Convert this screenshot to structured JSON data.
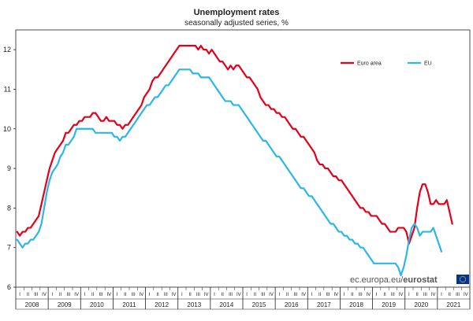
{
  "chart_data": {
    "type": "line",
    "title": "Unemployment rates",
    "subtitle": "seasonally adjusted series, %",
    "xlabel": "",
    "ylabel": "",
    "ylim": [
      6,
      12.5
    ],
    "yticks": [
      6,
      7,
      8,
      9,
      10,
      11,
      12
    ],
    "grid": false,
    "legend_placement": "top-right",
    "quarter_labels": [
      "I",
      "II",
      "III",
      "IV"
    ],
    "years": [
      "2008",
      "2009",
      "2010",
      "2011",
      "2012",
      "2013",
      "2014",
      "2015",
      "2016",
      "2017",
      "2018",
      "2019",
      "2020",
      "2021"
    ],
    "x_start": "2008-01",
    "series": [
      {
        "name": "Euro area",
        "color": "#e3001b",
        "values": [
          7.4,
          7.3,
          7.4,
          7.4,
          7.5,
          7.5,
          7.6,
          7.7,
          7.8,
          8.1,
          8.4,
          8.7,
          9.0,
          9.2,
          9.4,
          9.5,
          9.6,
          9.7,
          9.9,
          9.9,
          10.0,
          10.1,
          10.1,
          10.2,
          10.2,
          10.3,
          10.3,
          10.3,
          10.4,
          10.4,
          10.3,
          10.2,
          10.2,
          10.3,
          10.2,
          10.2,
          10.2,
          10.1,
          10.1,
          10.0,
          10.1,
          10.1,
          10.2,
          10.3,
          10.4,
          10.5,
          10.6,
          10.8,
          10.9,
          11.0,
          11.2,
          11.3,
          11.3,
          11.4,
          11.5,
          11.6,
          11.7,
          11.8,
          11.9,
          12.0,
          12.1,
          12.1,
          12.1,
          12.1,
          12.1,
          12.1,
          12.1,
          12.0,
          12.1,
          12.0,
          12.0,
          11.9,
          12.0,
          11.9,
          11.8,
          11.7,
          11.7,
          11.6,
          11.5,
          11.6,
          11.5,
          11.6,
          11.6,
          11.5,
          11.4,
          11.3,
          11.3,
          11.2,
          11.1,
          11.0,
          10.8,
          10.7,
          10.6,
          10.6,
          10.5,
          10.5,
          10.4,
          10.4,
          10.3,
          10.3,
          10.2,
          10.1,
          10.0,
          10.0,
          9.9,
          9.8,
          9.8,
          9.7,
          9.6,
          9.5,
          9.4,
          9.2,
          9.1,
          9.1,
          9.0,
          9.0,
          8.9,
          8.8,
          8.8,
          8.7,
          8.7,
          8.6,
          8.5,
          8.4,
          8.3,
          8.2,
          8.1,
          8.0,
          8.0,
          7.9,
          7.9,
          7.8,
          7.8,
          7.8,
          7.7,
          7.6,
          7.6,
          7.5,
          7.4,
          7.4,
          7.4,
          7.5,
          7.5,
          7.5,
          7.4,
          7.1,
          7.3,
          7.5,
          8.0,
          8.4,
          8.6,
          8.6,
          8.4,
          8.1,
          8.1,
          8.2,
          8.1,
          8.1,
          8.1,
          8.2,
          7.9,
          7.6
        ]
      },
      {
        "name": "EU",
        "color": "#2bb7e8",
        "values": [
          7.2,
          7.1,
          7.0,
          7.1,
          7.1,
          7.2,
          7.2,
          7.3,
          7.4,
          7.6,
          8.0,
          8.4,
          8.7,
          8.9,
          9.0,
          9.1,
          9.3,
          9.4,
          9.6,
          9.6,
          9.7,
          9.8,
          10.0,
          10.0,
          10.0,
          10.0,
          10.0,
          10.0,
          10.0,
          9.9,
          9.9,
          9.9,
          9.9,
          9.9,
          9.9,
          9.9,
          9.8,
          9.8,
          9.7,
          9.8,
          9.8,
          9.9,
          10.0,
          10.1,
          10.2,
          10.3,
          10.4,
          10.5,
          10.6,
          10.6,
          10.7,
          10.8,
          10.8,
          10.9,
          11.0,
          11.1,
          11.1,
          11.2,
          11.3,
          11.4,
          11.5,
          11.5,
          11.5,
          11.5,
          11.5,
          11.4,
          11.4,
          11.4,
          11.3,
          11.3,
          11.3,
          11.3,
          11.2,
          11.1,
          11.0,
          10.9,
          10.8,
          10.7,
          10.7,
          10.7,
          10.6,
          10.6,
          10.6,
          10.5,
          10.4,
          10.3,
          10.2,
          10.1,
          10.0,
          9.9,
          9.8,
          9.7,
          9.7,
          9.6,
          9.5,
          9.4,
          9.3,
          9.3,
          9.2,
          9.1,
          9.0,
          8.9,
          8.8,
          8.7,
          8.6,
          8.5,
          8.5,
          8.4,
          8.3,
          8.3,
          8.2,
          8.1,
          8.0,
          7.9,
          7.8,
          7.7,
          7.6,
          7.6,
          7.5,
          7.4,
          7.4,
          7.3,
          7.3,
          7.2,
          7.2,
          7.1,
          7.1,
          7.0,
          7.0,
          6.9,
          6.8,
          6.7,
          6.6,
          6.6,
          6.6,
          6.6,
          6.6,
          6.6,
          6.6,
          6.6,
          6.6,
          6.5,
          6.3,
          6.5,
          6.8,
          7.2,
          7.5,
          7.6,
          7.5,
          7.3,
          7.4,
          7.4,
          7.4,
          7.4,
          7.5,
          7.3,
          7.1,
          6.9
        ]
      }
    ]
  },
  "source": {
    "prefix": "ec.europa.eu/",
    "brand": "eurostat"
  },
  "colors": {
    "axis": "#222222",
    "eu_flag_blue": "#003399",
    "eu_flag_star": "#ffcc00"
  }
}
